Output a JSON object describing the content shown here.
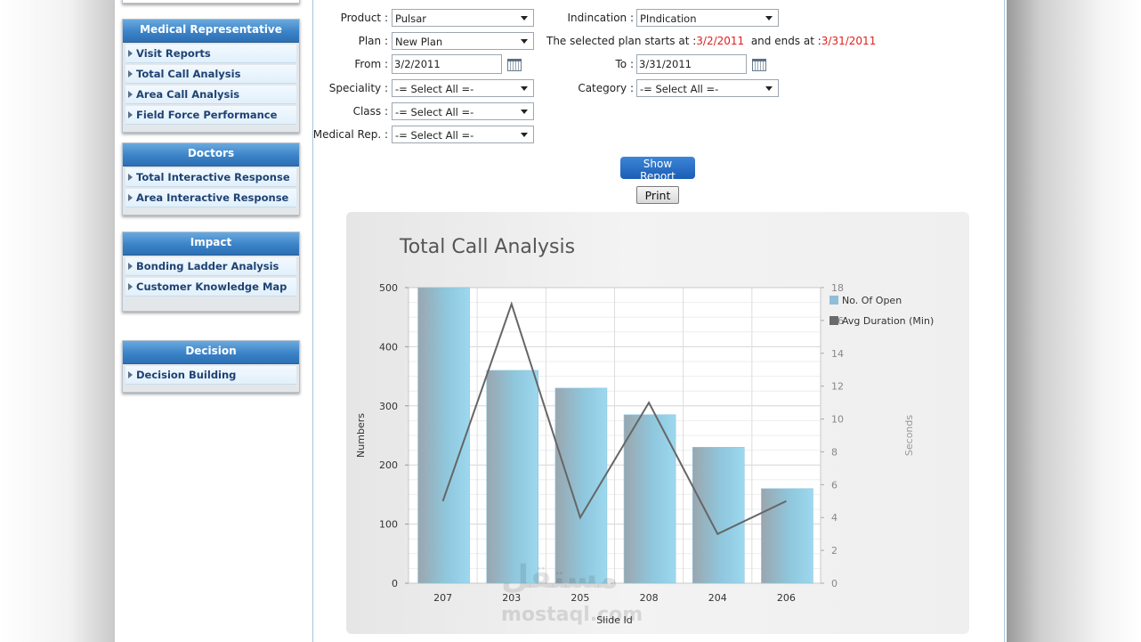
{
  "sidebar": {
    "panels": [
      {
        "title": "Medical Representative",
        "items": [
          "Visit Reports",
          "Total Call Analysis",
          "Area Call Analysis",
          "Field Force Performance"
        ]
      },
      {
        "title": "Doctors",
        "items": [
          "Total Interactive Response",
          "Area Interactive Response"
        ]
      },
      {
        "title": "Impact",
        "items": [
          "Bonding Ladder Analysis",
          "Customer Knowledge Map"
        ]
      },
      {
        "title": "Decision",
        "items": [
          "Decision Building"
        ]
      }
    ]
  },
  "form": {
    "product_label": "Product :",
    "product_value": "Pulsar",
    "indication_label": "Indincation :",
    "indication_value": "PIndication",
    "plan_label": "Plan :",
    "plan_value": "New Plan",
    "plan_info_prefix": "The selected plan starts at :",
    "plan_start": "3/2/2011",
    "plan_info_mid": "and ends at :",
    "plan_end": "3/31/2011",
    "from_label": "From :",
    "from_value": "3/2/2011",
    "to_label": "To :",
    "to_value": "3/31/2011",
    "speciality_label": "Speciality :",
    "speciality_value": "-= Select All =-",
    "category_label": "Category :",
    "category_value": "-= Select All =-",
    "class_label": "Class :",
    "class_value": "-= Select All =-",
    "medrep_label": "Medical Rep. :",
    "medrep_value": "-= Select All =-"
  },
  "buttons": {
    "show_report": "Show Report",
    "print": "Print"
  },
  "chart_data": {
    "type": "bar",
    "title": "Total Call Analysis",
    "xlabel": "Slide Id",
    "ylabel": "Numbers",
    "y2label": "Seconds",
    "categories": [
      "207",
      "203",
      "205",
      "208",
      "204",
      "206"
    ],
    "series": [
      {
        "name": "No. Of Open",
        "type": "bar",
        "axis": "left",
        "values": [
          500,
          360,
          330,
          285,
          230,
          160
        ],
        "color": "#8fd3ea"
      },
      {
        "name": "Avg Duration (Min)",
        "type": "line",
        "axis": "right",
        "values": [
          5,
          17,
          4,
          11,
          3,
          5
        ],
        "color": "#666666"
      }
    ],
    "ylim": [
      0,
      500
    ],
    "yticks": [
      0,
      100,
      200,
      300,
      400,
      500
    ],
    "y2lim": [
      0,
      18
    ],
    "y2ticks": [
      0,
      2,
      4,
      6,
      8,
      10,
      12,
      14,
      16,
      18
    ],
    "grid": true,
    "legend": "top-right"
  },
  "watermark": {
    "logo": "مستقل",
    "text": "mostaql.com"
  }
}
